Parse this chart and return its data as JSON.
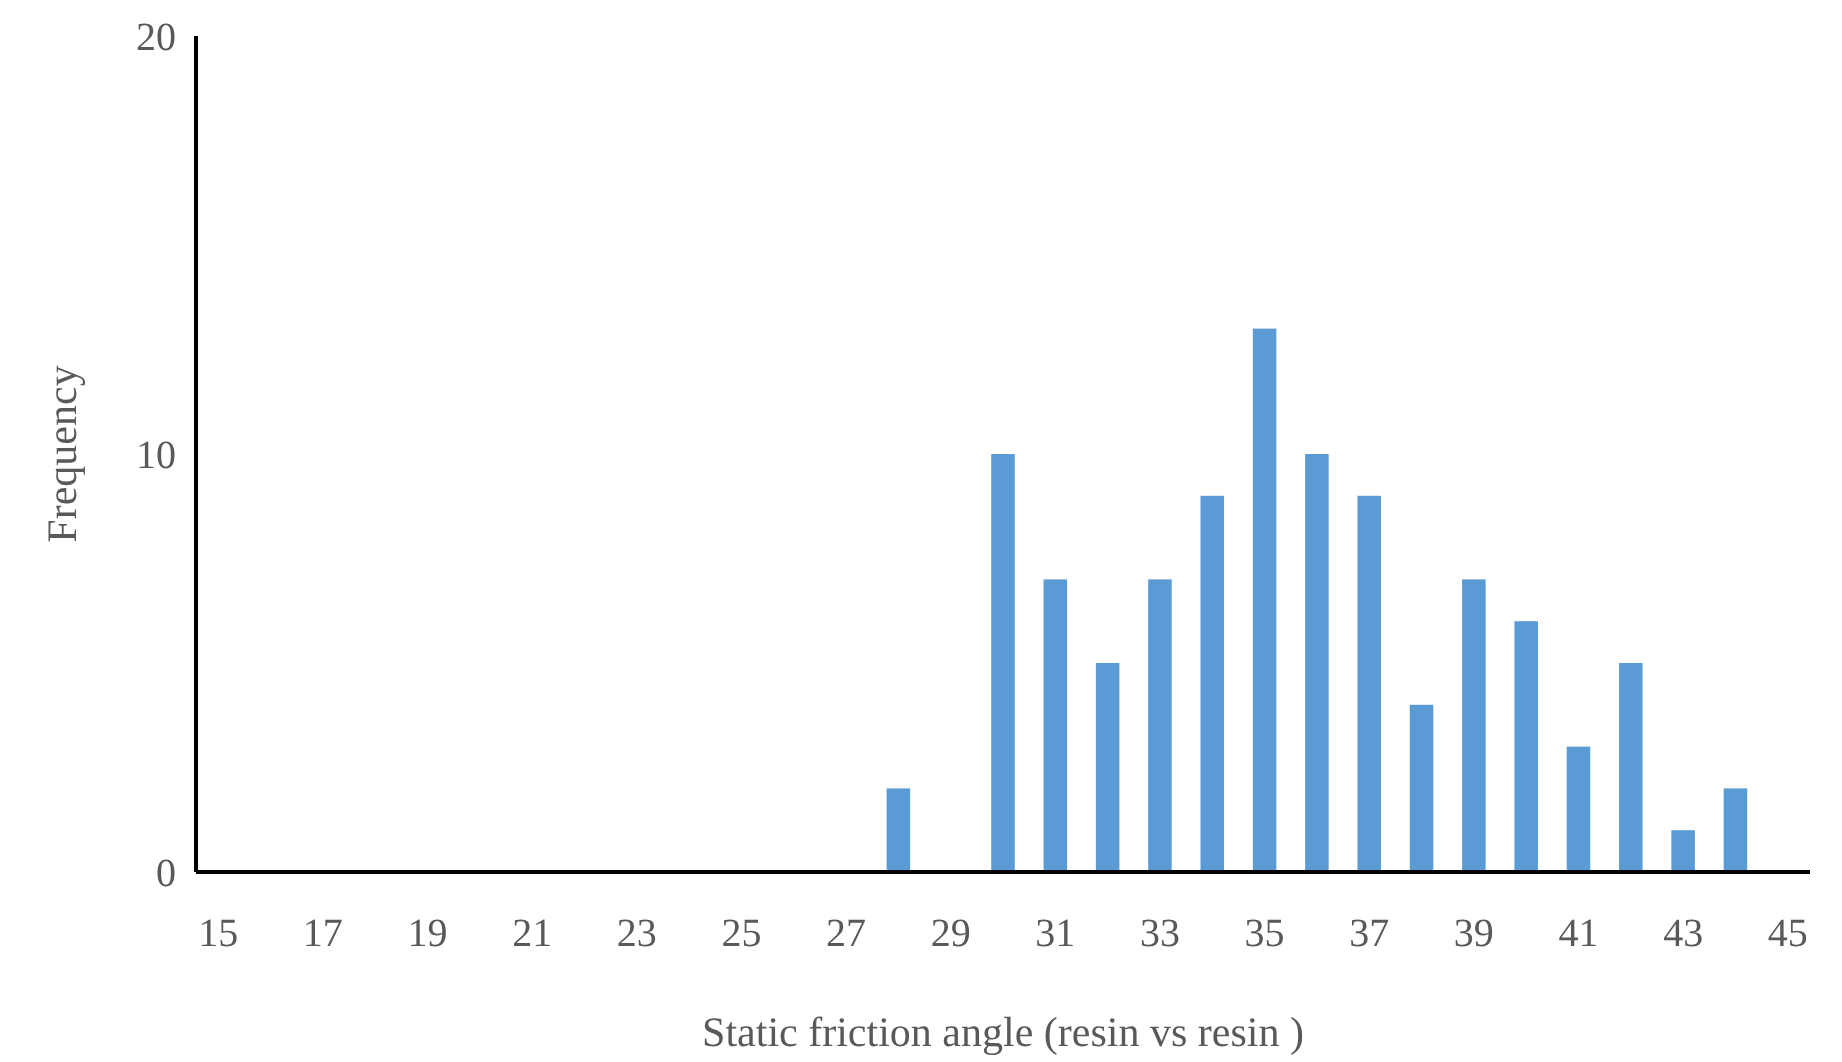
{
  "chart_data": {
    "type": "bar",
    "xlabel": "Static friction angle (resin vs resin )",
    "ylabel": "Frequency",
    "categories": [
      "15",
      null,
      "17",
      null,
      "19",
      null,
      "21",
      null,
      "23",
      null,
      "25",
      null,
      "27",
      null,
      "29",
      null,
      "31",
      null,
      "33",
      null,
      "35",
      null,
      "37",
      null,
      "39",
      null,
      "41",
      null,
      "43",
      null,
      "45"
    ],
    "values": [
      0,
      0,
      0,
      0,
      0,
      0,
      0,
      0,
      0,
      0,
      0,
      0,
      0,
      2,
      0,
      10,
      7,
      5,
      7,
      9,
      13,
      10,
      9,
      4,
      7,
      6,
      3,
      5,
      1,
      2,
      0
    ],
    "color": "#5b9bd5",
    "ylim": [
      0,
      20
    ],
    "yticks": [
      0,
      10,
      20
    ],
    "grid": false
  }
}
